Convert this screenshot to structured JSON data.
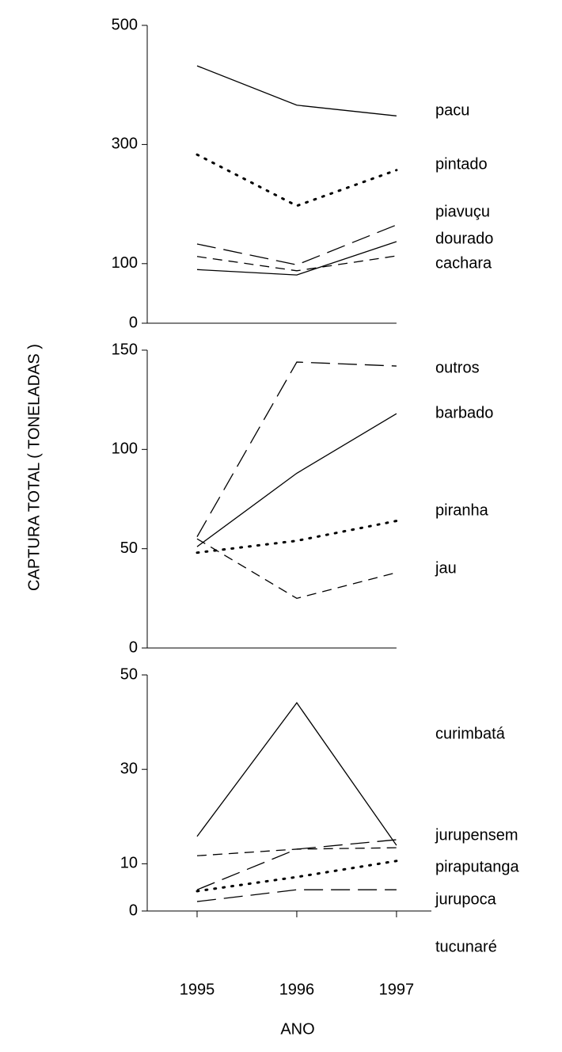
{
  "ylabel": "CAPTURA TOTAL   ( TONELADAS )",
  "xlabel": "ANO",
  "chart_data": [
    {
      "type": "line",
      "x": [
        1995,
        1996,
        1997
      ],
      "xlim": [
        1994.5,
        1997.35
      ],
      "ylim": [
        0,
        500
      ],
      "yticks": [
        0,
        100,
        300,
        500
      ],
      "series": [
        {
          "name": "pacu",
          "color": "#000000",
          "dash": "solid",
          "values": [
            432,
            366,
            348
          ]
        },
        {
          "name": "pintado",
          "color": "#000000",
          "dash": "dotted",
          "values": [
            283,
            197,
            257
          ]
        },
        {
          "name": "piavuçu",
          "color": "#000000",
          "dash": "long-dash",
          "values": [
            133,
            98,
            165
          ]
        },
        {
          "name": "dourado",
          "color": "#000000",
          "dash": "solid",
          "values": [
            90,
            81,
            137
          ]
        },
        {
          "name": "cachara",
          "color": "#000000",
          "dash": "dash",
          "values": [
            112,
            88,
            113
          ]
        }
      ]
    },
    {
      "type": "line",
      "x": [
        1995,
        1996,
        1997
      ],
      "xlim": [
        1994.5,
        1997.35
      ],
      "ylim": [
        0,
        150
      ],
      "yticks": [
        0,
        50,
        100,
        150
      ],
      "series": [
        {
          "name": "outros",
          "color": "#000000",
          "dash": "long-dash",
          "values": [
            56,
            144,
            142
          ]
        },
        {
          "name": "barbado",
          "color": "#000000",
          "dash": "solid",
          "values": [
            51,
            88,
            118
          ]
        },
        {
          "name": "piranha",
          "color": "#000000",
          "dash": "dotted",
          "values": [
            48,
            54,
            64
          ]
        },
        {
          "name": "jau",
          "color": "#000000",
          "dash": "dash",
          "values": [
            55,
            25,
            38
          ]
        }
      ]
    },
    {
      "type": "line",
      "x": [
        1995,
        1996,
        1997
      ],
      "xlim": [
        1994.5,
        1997.35
      ],
      "ylim": [
        0,
        50
      ],
      "yticks": [
        0,
        10,
        30,
        50
      ],
      "xticks": [
        1995,
        1996,
        1997
      ],
      "series": [
        {
          "name": "curimbatá",
          "color": "#000000",
          "dash": "solid",
          "values": [
            15.8,
            44.1,
            13.9
          ]
        },
        {
          "name": "jurupensem",
          "color": "#000000",
          "dash": "long-dash",
          "values": [
            4.5,
            13.1,
            15.1
          ]
        },
        {
          "name": "piraputanga",
          "color": "#000000",
          "dash": "dash",
          "values": [
            11.7,
            13.1,
            13.4
          ]
        },
        {
          "name": "jurupoca",
          "color": "#000000",
          "dash": "dotted",
          "values": [
            4.2,
            7.2,
            10.6
          ]
        },
        {
          "name": "tucunaré",
          "color": "#000000",
          "dash": "long-dash",
          "values": [
            2,
            4.5,
            4.5
          ]
        }
      ]
    }
  ]
}
